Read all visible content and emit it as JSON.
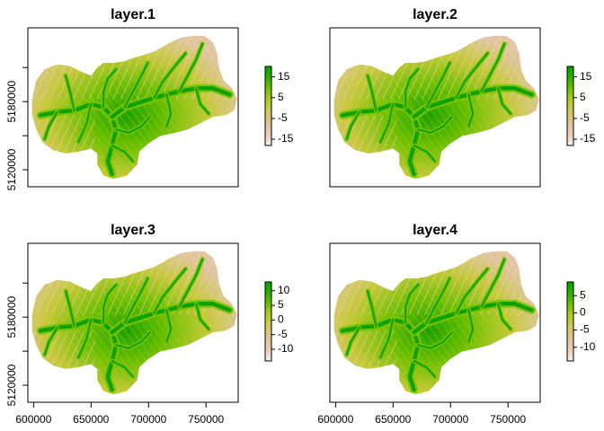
{
  "figure": {
    "type": "raster-map-panel",
    "panels": [
      {
        "title": "layer.1",
        "legend": {
          "min": -18,
          "max": 20,
          "ticks": [
            15,
            5,
            -5,
            -15
          ],
          "tick_labels": [
            "15",
            "5",
            "-5",
            "-15"
          ]
        },
        "x_ticks": [],
        "y_ticks": [
          5120000,
          5180000
        ],
        "y_tick_labels": [
          "5120000",
          "5180000"
        ],
        "x_tick_labels": []
      },
      {
        "title": "layer.2",
        "legend": {
          "min": -18,
          "max": 20,
          "ticks": [
            15,
            5,
            -5,
            -15
          ],
          "tick_labels": [
            "15",
            "5",
            "-5",
            "-15"
          ]
        },
        "x_ticks": [],
        "y_ticks": [],
        "y_tick_labels": [],
        "x_tick_labels": []
      },
      {
        "title": "layer.3",
        "legend": {
          "min": -14,
          "max": 13,
          "ticks": [
            10,
            5,
            0,
            -5,
            -10
          ],
          "tick_labels": [
            "10",
            "5",
            "0",
            "-5",
            "-10"
          ]
        },
        "x_ticks": [
          600000,
          650000,
          700000,
          750000
        ],
        "x_tick_labels": [
          "600000",
          "650000",
          "700000",
          "750000"
        ],
        "y_ticks": [
          5120000,
          5180000
        ],
        "y_tick_labels": [
          "5120000",
          "5180000"
        ]
      },
      {
        "title": "layer.4",
        "legend": {
          "min": -14,
          "max": 9,
          "ticks": [
            5,
            0,
            -5,
            -10
          ],
          "tick_labels": [
            "5",
            "0",
            "-5",
            "-10"
          ]
        },
        "x_ticks": [
          600000,
          650000,
          700000,
          750000
        ],
        "x_tick_labels": [
          "600000",
          "650000",
          "700000",
          "750000"
        ],
        "y_ticks": [],
        "y_tick_labels": []
      }
    ],
    "x_range": [
      595000,
      778000
    ],
    "y_range": [
      5105000,
      5245000
    ],
    "palette": [
      "#F2F2F2",
      "#EFCDB6",
      "#E5C28E",
      "#D6C75C",
      "#B2CE22",
      "#6FC100",
      "#2EAE00",
      "#00A600"
    ]
  }
}
